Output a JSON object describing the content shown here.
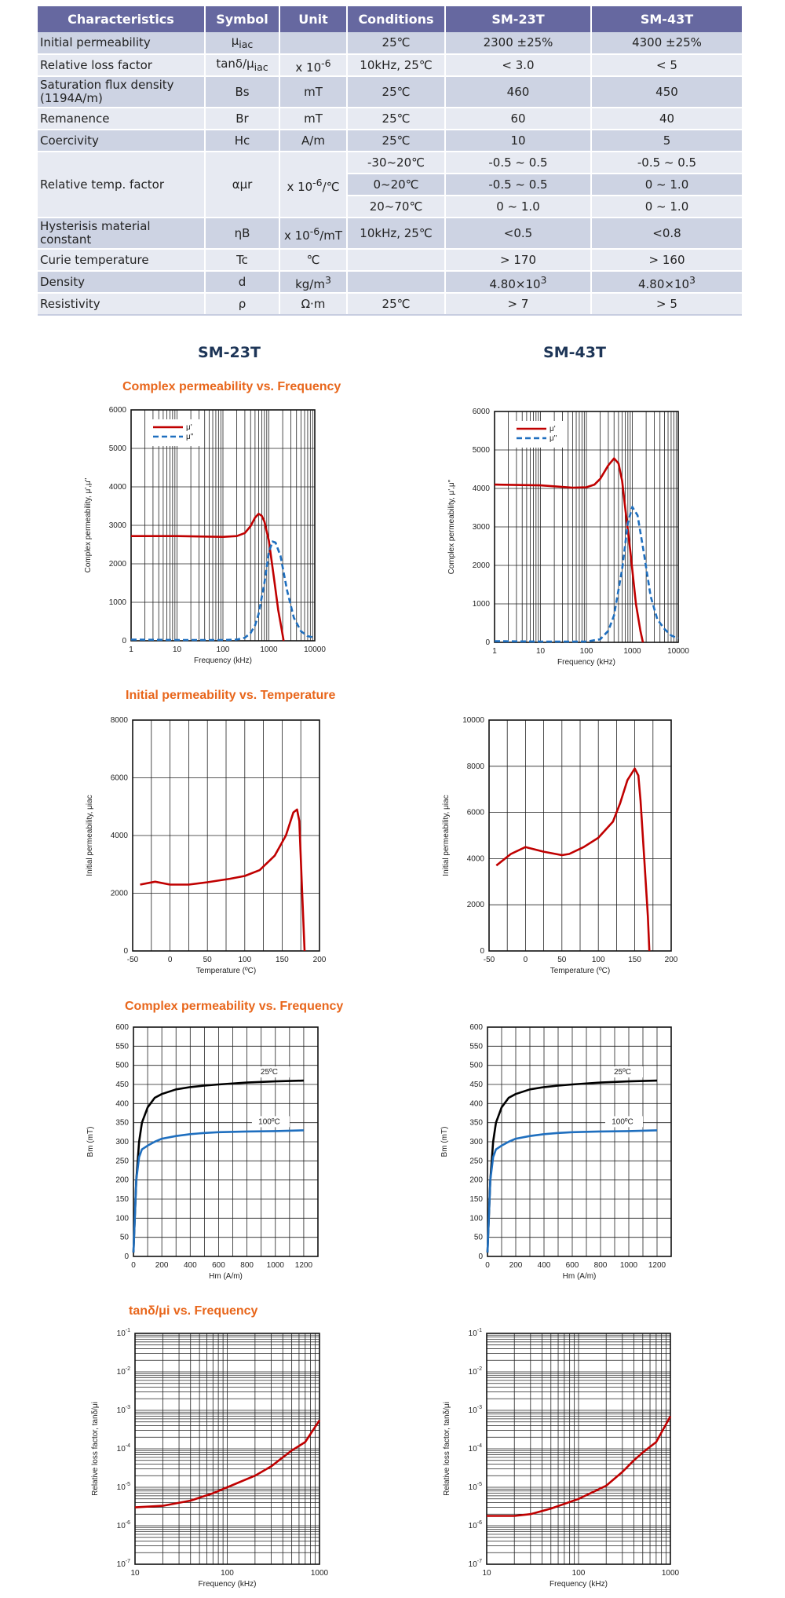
{
  "table": {
    "headers": [
      "Characteristics",
      "Symbol",
      "Unit",
      "Conditions",
      "SM-23T",
      "SM-43T"
    ],
    "rows": {
      "initial_permeability": {
        "name": "Initial permeability",
        "symbol": "μ",
        "symbol_sub": "iac",
        "cond": "25℃",
        "sm23": "2300 ±25%",
        "sm43": "4300 ±25%"
      },
      "relative_loss_factor": {
        "name": "Relative loss factor",
        "symbol": "tanδ/μ",
        "symbol_sub": "iac",
        "unit": "x 10",
        "unit_sup": "-6",
        "cond": "10kHz, 25℃",
        "sm23": "< 3.0",
        "sm43": "< 5"
      },
      "saturation": {
        "name": "Saturation flux density (1194A/m)",
        "symbol": "Bs",
        "unit": "mT",
        "cond": "25℃",
        "sm23": "460",
        "sm43": "450"
      },
      "remanence": {
        "name": "Remanence",
        "symbol": "Br",
        "unit": "mT",
        "cond": "25℃",
        "sm23": "60",
        "sm43": "40"
      },
      "coercivity": {
        "name": "Coercivity",
        "symbol": "Hc",
        "unit": "A/m",
        "cond": "25℃",
        "sm23": "10",
        "sm43": "5"
      },
      "temp_factor": {
        "name": "Relative temp. factor",
        "symbol": "αμr",
        "unit": "x 10",
        "unit_sup": "-6",
        "unit_after": "/℃",
        "sub": [
          {
            "cond": "-30~20℃",
            "sm23": "-0.5 ~ 0.5",
            "sm43": "-0.5 ~ 0.5"
          },
          {
            "cond": "0~20℃",
            "sm23": "-0.5 ~ 0.5",
            "sm43": "0 ~ 1.0"
          },
          {
            "cond": "20~70℃",
            "sm23": "0 ~ 1.0",
            "sm43": "0 ~ 1.0"
          }
        ]
      },
      "hysteresis": {
        "name": "Hysterisis material constant",
        "symbol": "ηB",
        "unit": "x 10",
        "unit_sup": "-6",
        "unit_after": "/mT",
        "cond": "10kHz, 25℃",
        "sm23": "<0.5",
        "sm43": "<0.8"
      },
      "curie": {
        "name": "Curie temperature",
        "symbol": "Tc",
        "unit": "℃",
        "sm23": "> 170",
        "sm43": "> 160"
      },
      "density": {
        "name": "Density",
        "symbol": "d",
        "unit": "kg/m",
        "unit_sup": "3",
        "sm23": "4.80×10",
        "sm23_sup": "3",
        "sm43": "4.80×10",
        "sm43_sup": "3"
      },
      "resistivity": {
        "name": "Resistivity",
        "symbol": "ρ",
        "unit": "Ω·m",
        "cond": "25℃",
        "sm23": "> 7",
        "sm43": "> 5"
      }
    }
  },
  "models": {
    "left": "SM-23T",
    "right": "SM-43T"
  },
  "sections": {
    "complex_freq": "Complex permeability vs. Frequency",
    "init_temp": "Initial permeability vs. Temperature",
    "bh": "Complex permeability vs. Frequency",
    "tand": "tanδ/μi vs. Frequency"
  },
  "colors": {
    "mu_real": "#c00000",
    "mu_imag": "#1f6fbf",
    "bh_25": "#000000",
    "bh_100": "#1f6fbf",
    "temp": "#c00000",
    "tand": "#c00000",
    "header_bg": "#6668a0"
  },
  "chart_data": [
    {
      "id": "perm23",
      "type": "line",
      "xscale": "log",
      "xlim": [
        1,
        10000
      ],
      "ylim": [
        0,
        6000
      ],
      "xticks": [
        "1",
        "10",
        "100",
        "1000",
        "10000"
      ],
      "yticks": [
        "0",
        "1000",
        "2000",
        "3000",
        "4000",
        "5000",
        "6000"
      ],
      "xlabel": "Frequency (kHz)",
      "ylabel": "Complex permeability, μ',μ\"",
      "legend": "top-left",
      "series": [
        {
          "name": "μ'",
          "style": "solid",
          "color": "#c00000",
          "points": [
            [
              1,
              2720
            ],
            [
              10,
              2720
            ],
            [
              100,
              2700
            ],
            [
              200,
              2720
            ],
            [
              300,
              2800
            ],
            [
              400,
              2980
            ],
            [
              500,
              3200
            ],
            [
              600,
              3300
            ],
            [
              700,
              3250
            ],
            [
              800,
              3100
            ],
            [
              1000,
              2600
            ],
            [
              1300,
              1600
            ],
            [
              1600,
              800
            ],
            [
              1900,
              300
            ],
            [
              2100,
              0
            ]
          ]
        },
        {
          "name": "μ\"",
          "style": "dashed",
          "color": "#1f6fbf",
          "points": [
            [
              1,
              30
            ],
            [
              10,
              20
            ],
            [
              100,
              20
            ],
            [
              200,
              30
            ],
            [
              300,
              80
            ],
            [
              400,
              200
            ],
            [
              500,
              400
            ],
            [
              600,
              700
            ],
            [
              800,
              1500
            ],
            [
              1000,
              2300
            ],
            [
              1200,
              2580
            ],
            [
              1400,
              2550
            ],
            [
              1800,
              2200
            ],
            [
              2500,
              1300
            ],
            [
              3500,
              600
            ],
            [
              5000,
              250
            ],
            [
              7000,
              120
            ],
            [
              10000,
              80
            ]
          ]
        }
      ]
    },
    {
      "id": "perm43",
      "type": "line",
      "xscale": "log",
      "xlim": [
        1,
        10000
      ],
      "ylim": [
        0,
        6000
      ],
      "xticks": [
        "1",
        "10",
        "100",
        "1000",
        "10000"
      ],
      "yticks": [
        "0",
        "1000",
        "2000",
        "3000",
        "4000",
        "5000",
        "6000"
      ],
      "xlabel": "Frequency (kHz)",
      "ylabel": "Complex permeability, μ',μ\"",
      "legend": "top-left",
      "series": [
        {
          "name": "μ'",
          "style": "solid",
          "color": "#c00000",
          "points": [
            [
              1,
              4100
            ],
            [
              10,
              4080
            ],
            [
              50,
              4020
            ],
            [
              100,
              4030
            ],
            [
              150,
              4100
            ],
            [
              200,
              4250
            ],
            [
              300,
              4600
            ],
            [
              400,
              4780
            ],
            [
              500,
              4650
            ],
            [
              600,
              4200
            ],
            [
              700,
              3500
            ],
            [
              900,
              2400
            ],
            [
              1200,
              1000
            ],
            [
              1500,
              300
            ],
            [
              1700,
              0
            ]
          ]
        },
        {
          "name": "μ\"",
          "style": "dashed",
          "color": "#1f6fbf",
          "points": [
            [
              1,
              30
            ],
            [
              10,
              20
            ],
            [
              100,
              20
            ],
            [
              200,
              80
            ],
            [
              300,
              300
            ],
            [
              400,
              700
            ],
            [
              600,
              1900
            ],
            [
              800,
              3100
            ],
            [
              1000,
              3520
            ],
            [
              1300,
              3300
            ],
            [
              1800,
              2300
            ],
            [
              2500,
              1200
            ],
            [
              3500,
              600
            ],
            [
              5000,
              350
            ],
            [
              7000,
              180
            ],
            [
              10000,
              100
            ]
          ]
        }
      ]
    },
    {
      "id": "temp23",
      "type": "line",
      "xlim": [
        -50,
        200
      ],
      "ylim": [
        0,
        8000
      ],
      "xticks": [
        "-50",
        "0",
        "50",
        "100",
        "150",
        "200"
      ],
      "yticks": [
        "0",
        "2000",
        "4000",
        "6000",
        "8000"
      ],
      "xlabel": "Temperature (ºC)",
      "ylabel": "Initial permeability, μiac",
      "series": [
        {
          "color": "#c00000",
          "points": [
            [
              -40,
              2300
            ],
            [
              -20,
              2400
            ],
            [
              0,
              2300
            ],
            [
              25,
              2300
            ],
            [
              50,
              2380
            ],
            [
              80,
              2500
            ],
            [
              100,
              2600
            ],
            [
              120,
              2800
            ],
            [
              140,
              3300
            ],
            [
              155,
              4000
            ],
            [
              165,
              4800
            ],
            [
              170,
              4900
            ],
            [
              173,
              4500
            ],
            [
              176,
              2500
            ],
            [
              180,
              0
            ]
          ]
        }
      ]
    },
    {
      "id": "temp43",
      "type": "line",
      "xlim": [
        -50,
        200
      ],
      "ylim": [
        0,
        10000
      ],
      "xticks": [
        "-50",
        "0",
        "50",
        "100",
        "150",
        "200"
      ],
      "yticks": [
        "0",
        "2000",
        "4000",
        "6000",
        "8000",
        "10000"
      ],
      "xlabel": "Temperature (ºC)",
      "ylabel": "Initial permeability, μiac",
      "series": [
        {
          "color": "#c00000",
          "points": [
            [
              -40,
              3700
            ],
            [
              -20,
              4200
            ],
            [
              0,
              4500
            ],
            [
              25,
              4300
            ],
            [
              50,
              4150
            ],
            [
              60,
              4200
            ],
            [
              80,
              4500
            ],
            [
              100,
              4900
            ],
            [
              120,
              5600
            ],
            [
              130,
              6400
            ],
            [
              140,
              7400
            ],
            [
              150,
              7900
            ],
            [
              155,
              7600
            ],
            [
              158,
              6500
            ],
            [
              163,
              4000
            ],
            [
              168,
              1500
            ],
            [
              170,
              0
            ]
          ]
        }
      ]
    },
    {
      "id": "bh23",
      "type": "line",
      "xlim": [
        0,
        1300
      ],
      "ylim": [
        0,
        600
      ],
      "xticks": [
        "0",
        "200",
        "400",
        "600",
        "800",
        "1000",
        "1200"
      ],
      "yticks": [
        "0",
        "50",
        "100",
        "150",
        "200",
        "250",
        "300",
        "350",
        "400",
        "450",
        "500",
        "550",
        "600"
      ],
      "xlabel": "Hm (A/m)",
      "ylabel": "Bm (mT)",
      "series": [
        {
          "name": "25ºC",
          "color": "#000000",
          "points": [
            [
              0,
              10
            ],
            [
              20,
              200
            ],
            [
              40,
              300
            ],
            [
              60,
              350
            ],
            [
              100,
              390
            ],
            [
              150,
              415
            ],
            [
              200,
              425
            ],
            [
              300,
              437
            ],
            [
              400,
              443
            ],
            [
              500,
              447
            ],
            [
              600,
              450
            ],
            [
              800,
              455
            ],
            [
              1000,
              458
            ],
            [
              1200,
              460
            ]
          ]
        },
        {
          "name": "100ºC",
          "color": "#1f6fbf",
          "points": [
            [
              0,
              10
            ],
            [
              20,
              200
            ],
            [
              40,
              260
            ],
            [
              60,
              280
            ],
            [
              100,
              290
            ],
            [
              150,
              300
            ],
            [
              200,
              308
            ],
            [
              300,
              315
            ],
            [
              400,
              320
            ],
            [
              500,
              323
            ],
            [
              600,
              325
            ],
            [
              800,
              327
            ],
            [
              1000,
              328
            ],
            [
              1200,
              330
            ]
          ]
        }
      ]
    },
    {
      "id": "bh43",
      "type": "line",
      "xlim": [
        0,
        1300
      ],
      "ylim": [
        0,
        600
      ],
      "xticks": [
        "0",
        "200",
        "400",
        "600",
        "800",
        "1000",
        "1200"
      ],
      "yticks": [
        "0",
        "50",
        "100",
        "150",
        "200",
        "250",
        "300",
        "350",
        "400",
        "450",
        "500",
        "550",
        "600"
      ],
      "xlabel": "Hm (A/m)",
      "ylabel": "Bm (mT)",
      "series": [
        {
          "name": "25ºC",
          "color": "#000000",
          "points": [
            [
              0,
              10
            ],
            [
              20,
              200
            ],
            [
              40,
              300
            ],
            [
              60,
              350
            ],
            [
              100,
              390
            ],
            [
              150,
              415
            ],
            [
              200,
              425
            ],
            [
              300,
              437
            ],
            [
              400,
              443
            ],
            [
              500,
              447
            ],
            [
              600,
              450
            ],
            [
              800,
              455
            ],
            [
              1000,
              458
            ],
            [
              1200,
              460
            ]
          ]
        },
        {
          "name": "100ºC",
          "color": "#1f6fbf",
          "points": [
            [
              0,
              10
            ],
            [
              20,
              200
            ],
            [
              40,
              260
            ],
            [
              60,
              280
            ],
            [
              100,
              290
            ],
            [
              150,
              300
            ],
            [
              200,
              308
            ],
            [
              300,
              315
            ],
            [
              400,
              320
            ],
            [
              500,
              323
            ],
            [
              600,
              325
            ],
            [
              800,
              327
            ],
            [
              1000,
              328
            ],
            [
              1200,
              330
            ]
          ]
        }
      ]
    },
    {
      "id": "tand23",
      "type": "line",
      "xscale": "log",
      "yscale": "log",
      "xlim": [
        10,
        1000
      ],
      "ylim": [
        1e-07,
        0.1
      ],
      "xticks": [
        "10",
        "100",
        "1000"
      ],
      "xlabel": "Frequency (kHz)",
      "ylabel": "Relative loss factor, tanδ/μi",
      "series": [
        {
          "color": "#c00000",
          "points": [
            [
              10,
              3e-06
            ],
            [
              20,
              3.3e-06
            ],
            [
              40,
              4.5e-06
            ],
            [
              70,
              7e-06
            ],
            [
              100,
              1e-05
            ],
            [
              200,
              2e-05
            ],
            [
              300,
              3.5e-05
            ],
            [
              400,
              6e-05
            ],
            [
              500,
              9e-05
            ],
            [
              700,
              0.00015
            ],
            [
              1000,
              0.00055
            ]
          ]
        }
      ]
    },
    {
      "id": "tand43",
      "type": "line",
      "xscale": "log",
      "yscale": "log",
      "xlim": [
        10,
        1000
      ],
      "ylim": [
        1e-07,
        0.1
      ],
      "xticks": [
        "10",
        "100",
        "1000"
      ],
      "xlabel": "Frequency (kHz)",
      "ylabel": "Relative loss factor, tanδ/μi",
      "series": [
        {
          "color": "#c00000",
          "points": [
            [
              10,
              1.8e-06
            ],
            [
              20,
              1.8e-06
            ],
            [
              30,
              2e-06
            ],
            [
              50,
              2.8e-06
            ],
            [
              100,
              5e-06
            ],
            [
              200,
              1.1e-05
            ],
            [
              300,
              2.5e-05
            ],
            [
              400,
              5e-05
            ],
            [
              500,
              8e-05
            ],
            [
              700,
              0.00015
            ],
            [
              1000,
              0.0007
            ]
          ]
        }
      ]
    }
  ]
}
